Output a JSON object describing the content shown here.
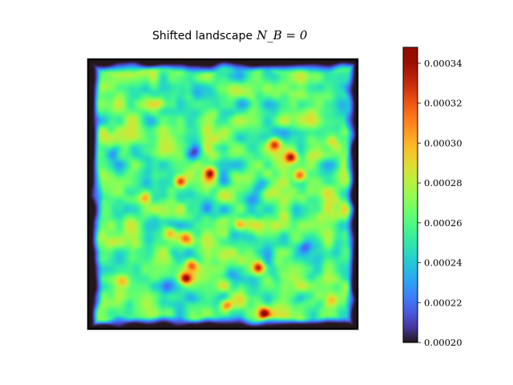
{
  "chart_data": {
    "type": "heatmap",
    "title": "Shifted landscape",
    "title_math": "N_B = 0",
    "colormap": "turbo",
    "colorbar": {
      "min": 0.0002,
      "max": 0.000348,
      "ticks": [
        0.0002,
        0.00022,
        0.00024,
        0.00026,
        0.00028,
        0.0003,
        0.00032,
        0.00034
      ],
      "tick_labels": [
        "0.00020",
        "0.00022",
        "0.00024",
        "0.00026",
        "0.00028",
        "0.00030",
        "0.00032",
        "0.00034"
      ]
    },
    "border_value": 0.0002,
    "mean_value": 0.00026,
    "hotspots": [
      {
        "x": 0.34,
        "y": 0.45,
        "v": 0.00034
      },
      {
        "x": 0.45,
        "y": 0.42,
        "v": 0.000345
      },
      {
        "x": 0.69,
        "y": 0.31,
        "v": 0.00033
      },
      {
        "x": 0.75,
        "y": 0.36,
        "v": 0.000335
      },
      {
        "x": 0.78,
        "y": 0.43,
        "v": 0.00033
      },
      {
        "x": 0.21,
        "y": 0.51,
        "v": 0.00032
      },
      {
        "x": 0.56,
        "y": 0.61,
        "v": 0.00034
      },
      {
        "x": 0.36,
        "y": 0.66,
        "v": 0.00031
      },
      {
        "x": 0.63,
        "y": 0.77,
        "v": 0.000345
      },
      {
        "x": 0.36,
        "y": 0.81,
        "v": 0.000348
      },
      {
        "x": 0.51,
        "y": 0.91,
        "v": 0.00033
      },
      {
        "x": 0.65,
        "y": 0.94,
        "v": 0.00034
      },
      {
        "x": 0.38,
        "y": 0.76,
        "v": 0.00032
      },
      {
        "x": 0.3,
        "y": 0.64,
        "v": 0.00031
      },
      {
        "x": 0.13,
        "y": 0.82,
        "v": 0.00029
      },
      {
        "x": 0.9,
        "y": 0.3,
        "v": 0.0003
      },
      {
        "x": 0.9,
        "y": 0.89,
        "v": 0.0003
      },
      {
        "x": 0.26,
        "y": 0.16,
        "v": 0.00029
      }
    ],
    "lowspots": [
      {
        "x": 0.09,
        "y": 0.34,
        "v": 0.00021
      },
      {
        "x": 0.39,
        "y": 0.35,
        "v": 0.000215
      },
      {
        "x": 0.8,
        "y": 0.69,
        "v": 0.00021
      },
      {
        "x": 0.44,
        "y": 0.55,
        "v": 0.00022
      },
      {
        "x": 0.64,
        "y": 0.46,
        "v": 0.00022
      },
      {
        "x": 0.3,
        "y": 0.84,
        "v": 0.00022
      },
      {
        "x": 0.53,
        "y": 0.79,
        "v": 0.00022
      },
      {
        "x": 0.57,
        "y": 0.16,
        "v": 0.000225
      }
    ]
  }
}
